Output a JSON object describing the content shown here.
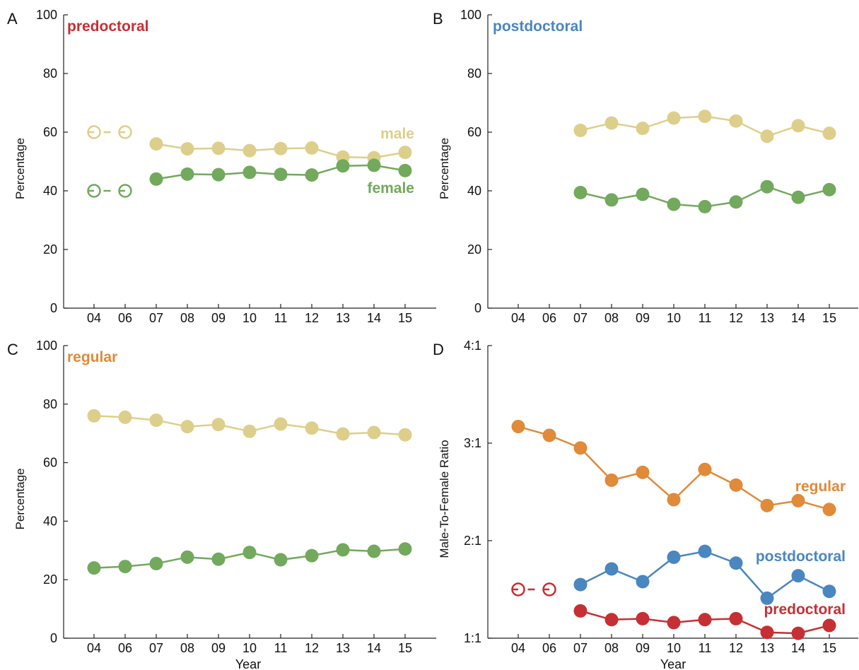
{
  "chart_data": [
    {
      "panel": "A",
      "type": "line",
      "title": "predoctoral",
      "title_color": "#c62f33",
      "ylabel": "Percentage",
      "xlabel": "",
      "ylim": [
        0,
        100
      ],
      "yticks": [
        "0",
        "20",
        "40",
        "60",
        "80",
        "100"
      ],
      "categories": [
        "04",
        "06",
        "07",
        "08",
        "09",
        "10",
        "11",
        "12",
        "13",
        "14",
        "15"
      ],
      "series": [
        {
          "name": "male",
          "color": "#ddcf8b",
          "values": [
            60,
            60,
            56,
            54.3,
            54.5,
            53.7,
            54.4,
            54.6,
            51.5,
            51.3,
            53.1
          ],
          "open_dashed_count": 2
        },
        {
          "name": "female",
          "color": "#72a95d",
          "values": [
            40,
            40,
            44,
            45.7,
            45.5,
            46.3,
            45.6,
            45.4,
            48.5,
            48.7,
            46.9
          ],
          "open_dashed_count": 2
        }
      ]
    },
    {
      "panel": "B",
      "type": "line",
      "title": "postdoctoral",
      "title_color": "#4a86c0",
      "ylabel": "Percentage",
      "xlabel": "",
      "ylim": [
        0,
        100
      ],
      "yticks": [
        "0",
        "20",
        "40",
        "60",
        "80",
        "100"
      ],
      "categories": [
        "04",
        "06",
        "07",
        "08",
        "09",
        "10",
        "11",
        "12",
        "13",
        "14",
        "15"
      ],
      "series": [
        {
          "color": "#ddcf8b",
          "values": [
            null,
            null,
            60.6,
            63.1,
            61.3,
            64.8,
            65.4,
            63.8,
            58.6,
            62.2,
            59.6
          ],
          "open_dashed_count": 0
        },
        {
          "color": "#72a95d",
          "values": [
            null,
            null,
            39.4,
            36.9,
            38.8,
            35.4,
            34.6,
            36.2,
            41.4,
            37.8,
            40.4
          ],
          "open_dashed_count": 0
        }
      ]
    },
    {
      "panel": "C",
      "type": "line",
      "title": "regular",
      "title_color": "#e08a3a",
      "ylabel": "Percentage",
      "xlabel": "Year",
      "ylim": [
        0,
        100
      ],
      "yticks": [
        "0",
        "20",
        "40",
        "60",
        "80",
        "100"
      ],
      "categories": [
        "04",
        "06",
        "07",
        "08",
        "09",
        "10",
        "11",
        "12",
        "13",
        "14",
        "15"
      ],
      "series": [
        {
          "color": "#ddcf8b",
          "values": [
            76,
            75.5,
            74.5,
            72.3,
            73,
            70.7,
            73.2,
            71.8,
            69.8,
            70.3,
            69.5
          ],
          "open_dashed_count": 0
        },
        {
          "color": "#72a95d",
          "values": [
            24,
            24.5,
            25.5,
            27.7,
            27,
            29.3,
            26.8,
            28.2,
            30.2,
            29.7,
            30.5
          ],
          "open_dashed_count": 0
        }
      ]
    },
    {
      "panel": "D",
      "type": "line",
      "title": "",
      "ylabel": "Male-To-Female Ratio",
      "xlabel": "Year",
      "ylim": [
        1,
        4
      ],
      "yticks": [
        "1:1",
        "2:1",
        "3:1",
        "4:1"
      ],
      "categories": [
        "04",
        "06",
        "07",
        "08",
        "09",
        "10",
        "11",
        "12",
        "13",
        "14",
        "15"
      ],
      "series": [
        {
          "name": "regular",
          "color": "#e08a3a",
          "values": [
            3.17,
            3.08,
            2.95,
            2.62,
            2.7,
            2.42,
            2.73,
            2.57,
            2.36,
            2.41,
            2.32
          ],
          "open_dashed_count": 0
        },
        {
          "name": "postdoctoral",
          "color": "#4a86c0",
          "values": [
            null,
            null,
            1.55,
            1.71,
            1.58,
            1.83,
            1.89,
            1.77,
            1.41,
            1.64,
            1.48
          ],
          "open_dashed_count": 0
        },
        {
          "name": "predoctoral",
          "color": "#c62f33",
          "values": [
            1.5,
            1.5,
            1.28,
            1.19,
            1.2,
            1.16,
            1.19,
            1.2,
            1.06,
            1.05,
            1.13
          ],
          "open_dashed_count": 2
        }
      ]
    }
  ]
}
